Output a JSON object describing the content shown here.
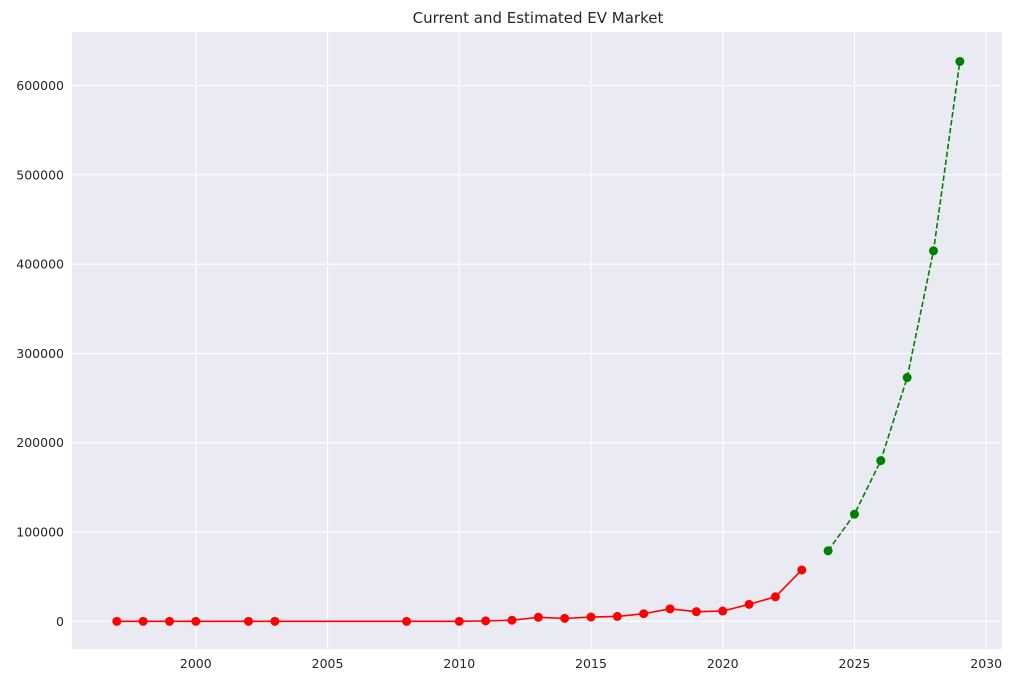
{
  "chart_data": {
    "type": "line",
    "title": "Current and Estimated EV Market",
    "xlabel": "",
    "ylabel": "",
    "xlim": [
      1995.3,
      2030.6
    ],
    "ylim": [
      -31000,
      660000
    ],
    "x_ticks": [
      2000,
      2005,
      2010,
      2015,
      2020,
      2025,
      2030
    ],
    "y_ticks": [
      0,
      100000,
      200000,
      300000,
      400000,
      500000,
      600000
    ],
    "grid": true,
    "legend": "none",
    "background": "#eaeaf2",
    "series": [
      {
        "color": "#ff0000",
        "line_style": "solid",
        "marker": "circle",
        "points": [
          {
            "x": 1997,
            "y": 0
          },
          {
            "x": 1998,
            "y": 0
          },
          {
            "x": 1999,
            "y": 0
          },
          {
            "x": 2000,
            "y": 0
          },
          {
            "x": 2002,
            "y": 0
          },
          {
            "x": 2003,
            "y": 0
          },
          {
            "x": 2008,
            "y": 0
          },
          {
            "x": 2010,
            "y": 0
          },
          {
            "x": 2011,
            "y": 500
          },
          {
            "x": 2012,
            "y": 1200
          },
          {
            "x": 2013,
            "y": 4500
          },
          {
            "x": 2014,
            "y": 3300
          },
          {
            "x": 2015,
            "y": 4800
          },
          {
            "x": 2016,
            "y": 5500
          },
          {
            "x": 2017,
            "y": 8500
          },
          {
            "x": 2018,
            "y": 14000
          },
          {
            "x": 2019,
            "y": 10800
          },
          {
            "x": 2020,
            "y": 11500
          },
          {
            "x": 2021,
            "y": 19000
          },
          {
            "x": 2022,
            "y": 27500
          },
          {
            "x": 2023,
            "y": 57500
          }
        ]
      },
      {
        "color": "#008000",
        "line_style": "dashed",
        "marker": "circle",
        "points": [
          {
            "x": 2024,
            "y": 79000
          },
          {
            "x": 2025,
            "y": 120000
          },
          {
            "x": 2026,
            "y": 180000
          },
          {
            "x": 2027,
            "y": 273000
          },
          {
            "x": 2028,
            "y": 415000
          },
          {
            "x": 2029,
            "y": 627000
          }
        ]
      }
    ]
  }
}
